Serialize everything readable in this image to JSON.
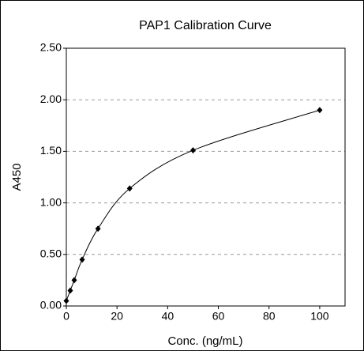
{
  "chart_data": {
    "type": "scatter",
    "title": "PAP1 Calibration Curve",
    "x_label": "Conc. (ng/mL)",
    "y_label": "A450",
    "x": [
      0,
      1.56,
      3.13,
      6.25,
      12.5,
      25,
      50,
      100
    ],
    "values": [
      0.05,
      0.15,
      0.25,
      0.45,
      0.75,
      1.14,
      1.51,
      1.9
    ],
    "color": "#000000",
    "smooth_line": true,
    "xlim": [
      0,
      110
    ],
    "xticks": [
      0,
      20,
      40,
      60,
      80,
      100
    ],
    "ylim": [
      0,
      2.5
    ],
    "yticks": [
      {
        "value": 0,
        "label": "0.00"
      },
      {
        "value": 0.5,
        "label": "0.50"
      },
      {
        "value": 1,
        "label": "1.00"
      },
      {
        "value": 1.5,
        "label": "1.50"
      },
      {
        "value": 2,
        "label": "2.00"
      },
      {
        "value": 2.5,
        "label": "2.50"
      }
    ],
    "grid": true
  }
}
